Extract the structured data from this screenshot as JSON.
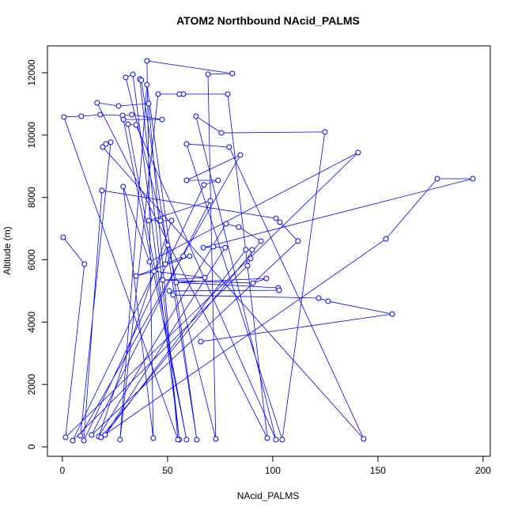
{
  "chart_data": {
    "type": "line",
    "title": "ATOM2 Northbound NAcid_PALMS",
    "x_label": "NAcid_PALMS",
    "y_label": "Altitude (m)",
    "color": "#0000ff",
    "markers": true,
    "grid": false,
    "x": [
      0.4,
      10.5,
      1.5,
      140.6,
      41.4,
      28.9,
      43.2,
      40.2,
      80.8,
      69.2,
      72.9,
      30.1,
      33.5,
      55.6,
      36.8,
      37.5,
      63.9,
      40.2,
      27.4,
      45.5,
      57.5,
      55.6,
      78.6,
      97.4,
      16.5,
      26.7,
      41,
      54.9,
      0.75,
      9,
      18,
      28.6,
      33,
      47.4,
      29,
      59,
      31.2,
      35,
      101.5,
      63.5,
      75.6,
      124.8,
      104.5,
      59,
      79.3,
      143.2,
      19.2,
      20.7,
      23,
      8.6,
      84.6,
      59,
      74,
      67.3,
      10.2,
      18.8,
      101.5,
      103.4,
      112,
      13.9,
      70.3,
      41,
      46.6,
      51.9,
      17.3,
      77.8,
      83.8,
      94.4,
      18.4,
      153.8,
      178.2,
      195.1,
      67,
      71.8,
      77.4,
      20.3,
      87.2,
      90.2,
      89.5,
      88,
      4.9,
      50,
      48.9,
      57.5,
      60.5,
      35,
      43.6,
      67.7,
      47.7,
      90.6,
      97,
      54.1,
      102.6,
      103,
      50.8,
      52.6,
      121.8,
      126.3,
      156.8,
      65.8
    ],
    "values": [
      6720,
      5860,
      305,
      9440,
      5935,
      8350,
      280,
      12380,
      11975,
      11950,
      255,
      11850,
      11950,
      230,
      11800,
      11760,
      230,
      11620,
      230,
      11315,
      11315,
      11315,
      11315,
      280,
      11035,
      10935,
      11010,
      230,
      10580,
      10605,
      10655,
      10630,
      10655,
      10500,
      10500,
      230,
      10350,
      10325,
      230,
      10605,
      10070,
      10100,
      230,
      9715,
      9615,
      255,
      9615,
      9715,
      9770,
      355,
      9360,
      8550,
      8550,
      8400,
      200,
      8220,
      7330,
      7205,
      6600,
      380,
      7890,
      7255,
      7255,
      7255,
      330,
      7155,
      7050,
      6600,
      305,
      6670,
      8600,
      8600,
      6390,
      6420,
      6390,
      380,
      6320,
      6320,
      6040,
      5810,
      200,
      6470,
      5860,
      6115,
      6115,
      5480,
      5630,
      5430,
      5350,
      5250,
      5400,
      5275,
      5100,
      5020,
      5000,
      4870,
      4770,
      4670,
      4260,
      3375
    ],
    "xlim": [
      -7.1,
      203.4
    ],
    "ylim": [
      -304,
      12862
    ],
    "xticks": [
      0,
      50,
      100,
      150,
      200
    ],
    "yticks": [
      0,
      2000,
      4000,
      6000,
      8000,
      10000,
      12000
    ]
  }
}
